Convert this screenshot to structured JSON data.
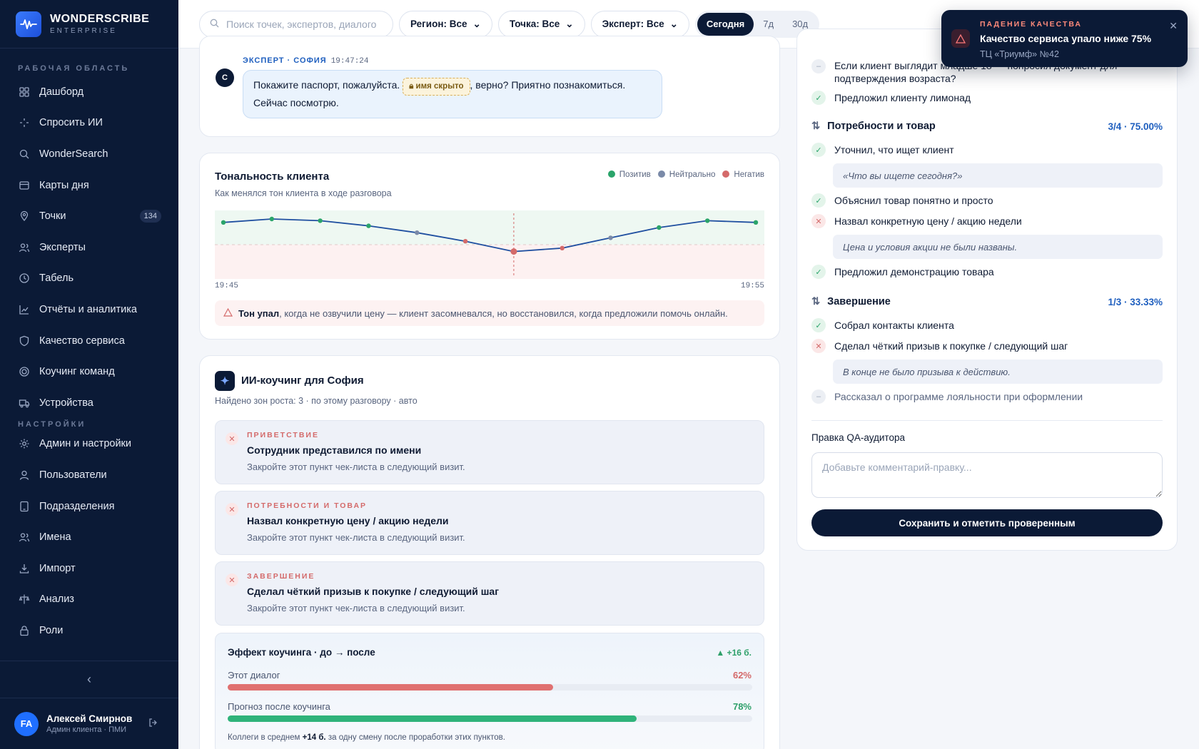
{
  "brand": {
    "name": "WONDERSCRIBE",
    "sub": "ENTERPRISE"
  },
  "sidebar": {
    "workspace_label": "РАБОЧАЯ ОБЛАСТЬ",
    "settings_label": "НАСТРОЙКИ",
    "items": [
      {
        "label": "Дашборд",
        "icon": "grid-icon"
      },
      {
        "label": "Спросить ИИ",
        "icon": "sparkle-icon"
      },
      {
        "label": "WonderSearch",
        "icon": "search-icon"
      },
      {
        "label": "Карты дня",
        "icon": "card-icon"
      },
      {
        "label": "Точки",
        "icon": "pin-icon",
        "badge": "134"
      },
      {
        "label": "Эксперты",
        "icon": "users-icon"
      },
      {
        "label": "Табель",
        "icon": "clock-icon"
      },
      {
        "label": "Отчёты и аналитика",
        "icon": "chart-icon"
      },
      {
        "label": "Качество сервиса",
        "icon": "shield-icon"
      },
      {
        "label": "Коучинг команд",
        "icon": "target-icon"
      },
      {
        "label": "Устройства",
        "icon": "truck-icon"
      }
    ],
    "settings_items": [
      {
        "label": "Админ и настройки",
        "icon": "gear-icon"
      },
      {
        "label": "Пользователи",
        "icon": "user-icon"
      },
      {
        "label": "Подразделения",
        "icon": "tablet-icon"
      },
      {
        "label": "Имена",
        "icon": "users-icon"
      },
      {
        "label": "Импорт",
        "icon": "import-icon"
      },
      {
        "label": "Анализ",
        "icon": "analysis-icon"
      },
      {
        "label": "Роли",
        "icon": "lock-icon"
      }
    ]
  },
  "user": {
    "initials": "FA",
    "name": "Алексей Смирнов",
    "role": "Админ клиента · ПМИ"
  },
  "topbar": {
    "search_placeholder": "Поиск точек, экспертов, диалогов",
    "filters": [
      "Регион: Все",
      "Точка: Все",
      "Эксперт: Все"
    ],
    "periods": [
      "Сегодня",
      "7д",
      "30д"
    ],
    "active_period": "Сегодня"
  },
  "message": {
    "avatar": "С",
    "meta": "ЭКСПЕРТ · СОФИЯ",
    "time": "19:47:24",
    "text_before": "Покажите паспорт, пожалуйста.",
    "hidden_chip": "имя скрыто",
    "text_after": ", верно? Приятно познакомиться.",
    "text_line2": "Сейчас посмотрю."
  },
  "tone": {
    "title": "Тональность клиента",
    "subtitle": "Как менялся тон клиента в ходе разговора",
    "legend": [
      "Позитив",
      "Нейтрально",
      "Негатив"
    ],
    "colors": {
      "positive": "#2aa46a",
      "neutral": "#7a8aa8",
      "negative": "#d46a6a",
      "line": "#1f4fa0"
    },
    "x_start": "19:45",
    "x_end": "19:55",
    "note_bold": "Тон упал",
    "note_rest": ", когда не озвучили цену — клиент засомневался, но восстановился, когда предложили помочь онлайн."
  },
  "chart_data": {
    "type": "line",
    "title": "Тональность клиента",
    "x": [
      "19:45",
      "",
      "",
      "",
      "",
      "",
      "",
      "",
      "",
      "",
      "",
      "19:55"
    ],
    "values": [
      0.65,
      0.75,
      0.7,
      0.55,
      0.35,
      0.1,
      -0.2,
      -0.1,
      0.2,
      0.5,
      0.7,
      0.65
    ],
    "point_tone": [
      "pos",
      "pos",
      "pos",
      "pos",
      "neu",
      "neg",
      "neg",
      "neg",
      "neu",
      "pos",
      "pos",
      "pos"
    ],
    "marker_index": 6,
    "ylim": [
      -1,
      1
    ]
  },
  "coach": {
    "title": "ИИ-коучинг для София",
    "subtitle": "Найдено зон роста: 3 · по этому разговору · авто",
    "items": [
      {
        "cat": "ПРИВЕТСТВИЕ",
        "title": "Сотрудник представился по имени",
        "desc": "Закройте этот пункт чек-листа в следующий визит."
      },
      {
        "cat": "ПОТРЕБНОСТИ И ТОВАР",
        "title": "Назвал конкретную цену / акцию недели",
        "desc": "Закройте этот пункт чек-листа в следующий визит."
      },
      {
        "cat": "ЗАВЕРШЕНИЕ",
        "title": "Сделал чёткий призыв к покупке / следующий шаг",
        "desc": "Закройте этот пункт чек-листа в следующий визит."
      }
    ],
    "effect": {
      "title": "Эффект коучинга · до → после",
      "delta": "▲ +16 б.",
      "bars": [
        {
          "label": "Этот диалог",
          "value": "62%",
          "fraction": 0.62,
          "color": "#e07070"
        },
        {
          "label": "Прогноз после коучинга",
          "value": "78%",
          "fraction": 0.78,
          "color": "#2fb37a"
        }
      ],
      "footer_before": "Коллеги в среднем ",
      "footer_bold": "+14 б.",
      "footer_after": " за одну смену после проработки этих пунктов."
    }
  },
  "checklist": {
    "top_items": [
      {
        "state": "na",
        "text": "Если клиент выглядит младше 18 — попросил документ для подтверждения возраста?"
      },
      {
        "state": "ok",
        "text": "Предложил клиенту лимонад"
      }
    ],
    "sections": [
      {
        "title": "Потребности и товар",
        "score": "3/4 · 75.00%",
        "items": [
          {
            "state": "ok",
            "text": "Уточнил, что ищет клиент",
            "quote": "«Что вы ищете сегодня?»"
          },
          {
            "state": "ok",
            "text": "Объяснил товар понятно и просто"
          },
          {
            "state": "no",
            "text": "Назвал конкретную цену / акцию недели",
            "quote": "Цена и условия акции не были названы."
          },
          {
            "state": "ok",
            "text": "Предложил демонстрацию товара"
          }
        ]
      },
      {
        "title": "Завершение",
        "score": "1/3 · 33.33%",
        "items": [
          {
            "state": "ok",
            "text": "Собрал контакты клиента"
          },
          {
            "state": "no",
            "text": "Сделал чёткий призыв к покупке / следующий шаг",
            "quote": "В конце не было призыва к действию."
          },
          {
            "state": "na",
            "text": "Рассказал о программе лояльности при оформлении"
          }
        ]
      }
    ],
    "qa_label": "Правка QA-аудитора",
    "qa_placeholder": "Добавьте комментарий-правку...",
    "save_label": "Сохранить и отметить проверенным"
  },
  "toast": {
    "category": "ПАДЕНИЕ КАЧЕСТВА",
    "title": "Качество сервиса упало ниже 75%",
    "subtitle": "ТЦ «Триумф» №42"
  }
}
